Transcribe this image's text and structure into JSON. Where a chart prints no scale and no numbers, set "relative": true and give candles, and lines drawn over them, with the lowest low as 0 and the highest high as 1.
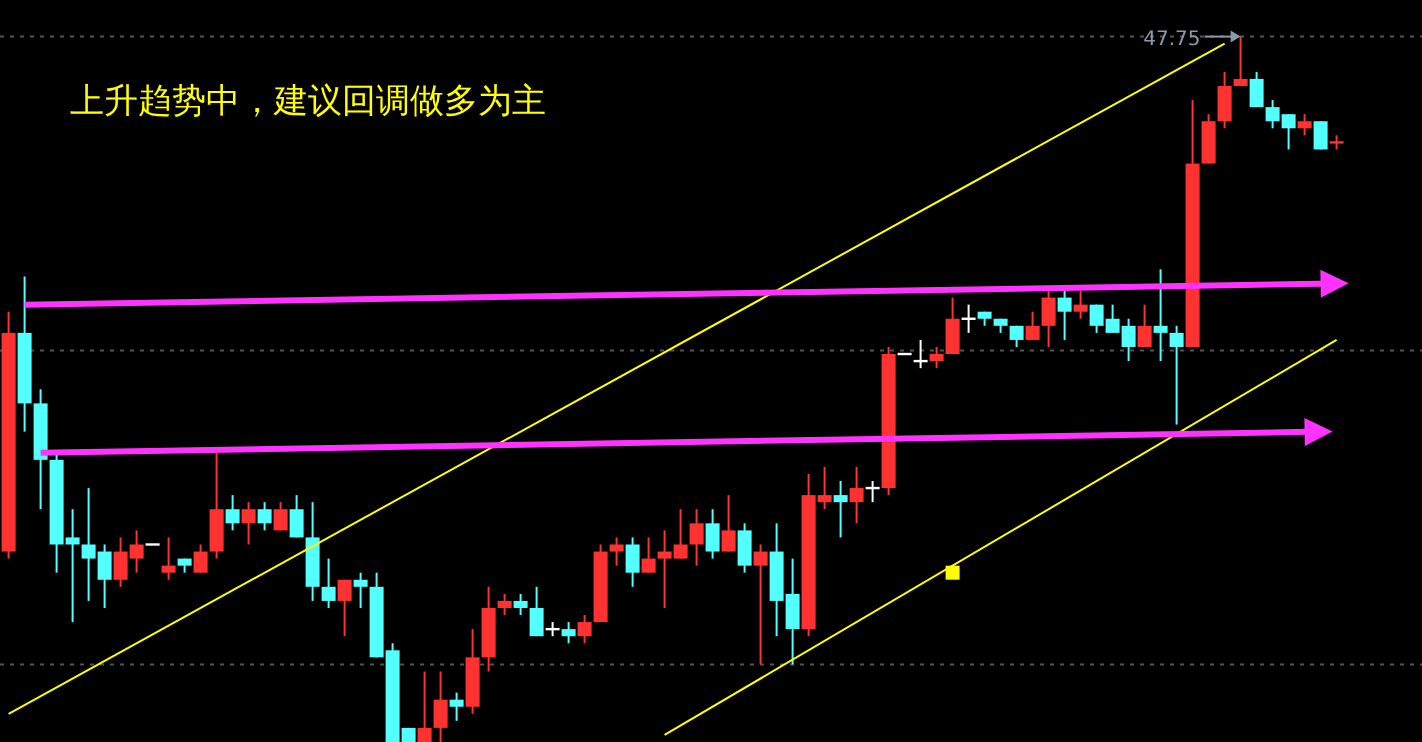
{
  "chart_data": {
    "type": "candlestick",
    "relative": true,
    "categories": [
      null,
      null,
      null,
      null,
      null,
      null,
      null,
      null,
      null,
      null,
      null,
      null,
      null,
      null,
      null,
      null,
      null,
      null,
      null,
      null,
      null,
      null,
      null,
      null,
      null,
      null,
      null,
      null,
      null,
      null,
      null,
      null,
      null,
      null,
      null,
      null,
      null,
      null,
      null,
      null,
      null,
      null,
      null,
      null,
      null,
      null,
      null,
      null,
      null,
      null,
      null,
      null,
      null,
      null,
      null,
      null,
      null,
      null,
      null,
      null,
      null,
      null,
      null,
      null,
      null,
      null,
      null,
      null,
      null,
      null,
      null,
      null,
      null,
      null,
      null,
      null,
      null,
      null,
      null,
      null,
      null,
      null,
      null,
      null
    ],
    "ohlc": [
      [
        0.27,
        0.61,
        0.26,
        0.58
      ],
      [
        0.58,
        0.66,
        0.44,
        0.48
      ],
      [
        0.48,
        0.5,
        0.33,
        0.4
      ],
      [
        0.4,
        0.41,
        0.24,
        0.28
      ],
      [
        0.29,
        0.33,
        0.17,
        0.28
      ],
      [
        0.28,
        0.36,
        0.2,
        0.26
      ],
      [
        0.27,
        0.28,
        0.19,
        0.23
      ],
      [
        0.23,
        0.29,
        0.22,
        0.27
      ],
      [
        0.26,
        0.3,
        0.24,
        0.28
      ],
      [
        0.28,
        0.28,
        0.28,
        0.28
      ],
      [
        0.24,
        0.29,
        0.23,
        0.25
      ],
      [
        0.26,
        0.26,
        0.24,
        0.25
      ],
      [
        0.24,
        0.28,
        0.24,
        0.27
      ],
      [
        0.27,
        0.41,
        0.26,
        0.33
      ],
      [
        0.33,
        0.35,
        0.3,
        0.31
      ],
      [
        0.31,
        0.34,
        0.28,
        0.33
      ],
      [
        0.33,
        0.34,
        0.3,
        0.31
      ],
      [
        0.3,
        0.34,
        0.3,
        0.33
      ],
      [
        0.33,
        0.35,
        0.29,
        0.29
      ],
      [
        0.29,
        0.34,
        0.2,
        0.22
      ],
      [
        0.22,
        0.26,
        0.19,
        0.2
      ],
      [
        0.2,
        0.23,
        0.15,
        0.23
      ],
      [
        0.23,
        0.24,
        0.19,
        0.22
      ],
      [
        0.22,
        0.24,
        0.12,
        0.12
      ],
      [
        0.13,
        0.14,
        0,
        0
      ],
      [
        0.02,
        0.02,
        0,
        0
      ],
      [
        0,
        0.1,
        0,
        0.02
      ],
      [
        0.02,
        0.1,
        0,
        0.06
      ],
      [
        0.06,
        0.07,
        0.03,
        0.05
      ],
      [
        0.05,
        0.16,
        0.04,
        0.12
      ],
      [
        0.12,
        0.22,
        0.1,
        0.19
      ],
      [
        0.19,
        0.21,
        0.18,
        0.2
      ],
      [
        0.2,
        0.21,
        0.18,
        0.19
      ],
      [
        0.19,
        0.22,
        0.15,
        0.15
      ],
      [
        0.16,
        0.17,
        0.15,
        0.16
      ],
      [
        0.16,
        0.17,
        0.14,
        0.15
      ],
      [
        0.15,
        0.18,
        0.14,
        0.17
      ],
      [
        0.17,
        0.28,
        0.17,
        0.27
      ],
      [
        0.27,
        0.29,
        0.25,
        0.28
      ],
      [
        0.28,
        0.29,
        0.22,
        0.24
      ],
      [
        0.24,
        0.29,
        0.24,
        0.26
      ],
      [
        0.26,
        0.3,
        0.19,
        0.27
      ],
      [
        0.26,
        0.33,
        0.26,
        0.28
      ],
      [
        0.28,
        0.33,
        0.25,
        0.31
      ],
      [
        0.31,
        0.33,
        0.26,
        0.27
      ],
      [
        0.27,
        0.35,
        0.27,
        0.3
      ],
      [
        0.3,
        0.31,
        0.24,
        0.25
      ],
      [
        0.25,
        0.28,
        0.11,
        0.27
      ],
      [
        0.27,
        0.31,
        0.15,
        0.2
      ],
      [
        0.21,
        0.26,
        0.11,
        0.16
      ],
      [
        0.16,
        0.38,
        0.15,
        0.35
      ],
      [
        0.34,
        0.39,
        0.33,
        0.35
      ],
      [
        0.35,
        0.37,
        0.29,
        0.34
      ],
      [
        0.34,
        0.39,
        0.31,
        0.36
      ],
      [
        0.36,
        0.37,
        0.34,
        0.36
      ],
      [
        0.36,
        0.56,
        0.35,
        0.55
      ],
      [
        0.55,
        0.55,
        0.55,
        0.55
      ],
      [
        0.54,
        0.57,
        0.53,
        0.54
      ],
      [
        0.54,
        0.56,
        0.53,
        0.55
      ],
      [
        0.55,
        0.63,
        0.55,
        0.6
      ],
      [
        0.6,
        0.62,
        0.58,
        0.6
      ],
      [
        0.61,
        0.61,
        0.59,
        0.6
      ],
      [
        0.6,
        0.6,
        0.58,
        0.59
      ],
      [
        0.59,
        0.59,
        0.56,
        0.57
      ],
      [
        0.57,
        0.61,
        0.57,
        0.59
      ],
      [
        0.59,
        0.64,
        0.56,
        0.63
      ],
      [
        0.63,
        0.64,
        0.57,
        0.61
      ],
      [
        0.61,
        0.64,
        0.6,
        0.62
      ],
      [
        0.62,
        0.62,
        0.58,
        0.59
      ],
      [
        0.6,
        0.62,
        0.58,
        0.58
      ],
      [
        0.59,
        0.6,
        0.54,
        0.56
      ],
      [
        0.56,
        0.62,
        0.56,
        0.59
      ],
      [
        0.59,
        0.67,
        0.54,
        0.58
      ],
      [
        0.58,
        0.59,
        0.45,
        0.56
      ],
      [
        0.56,
        0.91,
        0.56,
        0.82
      ],
      [
        0.82,
        0.89,
        0.82,
        0.88
      ],
      [
        0.88,
        0.95,
        0.87,
        0.93
      ],
      [
        0.93,
        1,
        0.93,
        0.94
      ],
      [
        0.94,
        0.95,
        0.9,
        0.9
      ],
      [
        0.9,
        0.91,
        0.87,
        0.88
      ],
      [
        0.89,
        0.89,
        0.84,
        0.87
      ],
      [
        0.87,
        0.89,
        0.86,
        0.88
      ],
      [
        0.88,
        0.88,
        0.84,
        0.84
      ],
      [
        0.85,
        0.86,
        0.84,
        0.85
      ]
    ],
    "colors": [
      "#ff3232",
      "#54ffff",
      "#54ffff",
      "#54ffff",
      "#54ffff",
      "#54ffff",
      "#54ffff",
      "#ff3232",
      "#ff3232",
      "#ffffff",
      "#ff3232",
      "#54ffff",
      "#ff3232",
      "#ff3232",
      "#54ffff",
      "#ff3232",
      "#54ffff",
      "#ff3232",
      "#54ffff",
      "#54ffff",
      "#54ffff",
      "#ff3232",
      "#54ffff",
      "#54ffff",
      "#54ffff",
      "#54ffff",
      "#ff3232",
      "#ff3232",
      "#54ffff",
      "#ff3232",
      "#ff3232",
      "#ff3232",
      "#54ffff",
      "#54ffff",
      "#ffffff",
      "#54ffff",
      "#ff3232",
      "#ff3232",
      "#ff3232",
      "#54ffff",
      "#ff3232",
      "#ff3232",
      "#ff3232",
      "#ff3232",
      "#54ffff",
      "#ff3232",
      "#54ffff",
      "#ff3232",
      "#54ffff",
      "#54ffff",
      "#ff3232",
      "#ff3232",
      "#54ffff",
      "#ff3232",
      "#ffffff",
      "#ff3232",
      "#ffffff",
      "#ffffff",
      "#ff3232",
      "#ff3232",
      "#ffffff",
      "#54ffff",
      "#54ffff",
      "#54ffff",
      "#ff3232",
      "#ff3232",
      "#54ffff",
      "#ff3232",
      "#54ffff",
      "#54ffff",
      "#54ffff",
      "#ff3232",
      "#54ffff",
      "#54ffff",
      "#ff3232",
      "#ff3232",
      "#ff3232",
      "#ff3232",
      "#54ffff",
      "#54ffff",
      "#54ffff",
      "#ff3232",
      "#54ffff",
      "#ff3232"
    ],
    "series": [
      {
        "type": "line",
        "color": "#ffff00",
        "values": [
          0.04,
          null,
          null,
          null,
          null,
          null,
          null,
          null,
          null,
          null,
          null,
          null,
          null,
          null,
          null,
          null,
          null,
          null,
          null,
          null,
          null,
          null,
          null,
          null,
          null,
          null,
          null,
          null,
          null,
          null,
          null,
          null,
          null,
          null,
          null,
          null,
          null,
          null,
          null,
          null,
          null,
          null,
          null,
          null,
          null,
          null,
          null,
          null,
          null,
          null,
          null,
          null,
          null,
          null,
          null,
          null,
          null,
          null,
          null,
          null,
          null,
          null,
          null,
          null,
          null,
          null,
          null,
          null,
          null,
          null,
          null,
          null,
          null,
          null,
          null,
          null,
          0.99,
          null,
          null,
          null,
          null,
          null,
          null,
          null
        ]
      },
      {
        "type": "line",
        "color": "#ffff00",
        "values": [
          null,
          null,
          null,
          null,
          null,
          null,
          null,
          null,
          null,
          null,
          null,
          null,
          null,
          null,
          null,
          null,
          null,
          null,
          null,
          null,
          null,
          null,
          null,
          null,
          null,
          null,
          null,
          null,
          null,
          null,
          null,
          null,
          null,
          null,
          null,
          null,
          null,
          null,
          null,
          null,
          null,
          0.01,
          null,
          null,
          null,
          null,
          null,
          null,
          null,
          null,
          null,
          null,
          null,
          null,
          null,
          null,
          null,
          null,
          null,
          null,
          null,
          null,
          null,
          null,
          null,
          null,
          null,
          null,
          null,
          null,
          null,
          null,
          null,
          null,
          null,
          null,
          null,
          null,
          null,
          null,
          null,
          null,
          null,
          0.57
        ]
      },
      {
        "type": "line",
        "color": "#ff33ff",
        "marker": "triangle",
        "values": [
          null,
          0.62,
          null,
          null,
          null,
          null,
          null,
          null,
          null,
          null,
          null,
          null,
          null,
          null,
          null,
          null,
          null,
          null,
          null,
          null,
          null,
          null,
          null,
          null,
          null,
          null,
          null,
          null,
          null,
          null,
          null,
          null,
          null,
          null,
          null,
          null,
          null,
          null,
          null,
          null,
          null,
          null,
          null,
          null,
          null,
          null,
          null,
          null,
          null,
          null,
          null,
          null,
          null,
          null,
          null,
          null,
          null,
          null,
          null,
          null,
          null,
          null,
          null,
          null,
          null,
          null,
          null,
          null,
          null,
          null,
          null,
          null,
          null,
          null,
          null,
          null,
          null,
          null,
          null,
          null,
          null,
          null,
          null,
          0.65
        ]
      },
      {
        "type": "line",
        "color": "#ff33ff",
        "marker": "triangle",
        "values": [
          null,
          null,
          0.41,
          null,
          null,
          null,
          null,
          null,
          null,
          null,
          null,
          null,
          null,
          null,
          null,
          null,
          null,
          null,
          null,
          null,
          null,
          null,
          null,
          null,
          null,
          null,
          null,
          null,
          null,
          null,
          null,
          null,
          null,
          null,
          null,
          null,
          null,
          null,
          null,
          null,
          null,
          null,
          null,
          null,
          null,
          null,
          null,
          null,
          null,
          null,
          null,
          null,
          null,
          null,
          null,
          null,
          null,
          null,
          null,
          null,
          null,
          null,
          null,
          null,
          null,
          null,
          null,
          null,
          null,
          null,
          null,
          null,
          null,
          null,
          null,
          null,
          null,
          null,
          null,
          null,
          null,
          null,
          0.44,
          null
        ]
      },
      {
        "type": "scatter",
        "color": "#ffff00",
        "marker": "square",
        "values": [
          null,
          null,
          null,
          null,
          null,
          null,
          null,
          null,
          null,
          null,
          null,
          null,
          null,
          null,
          null,
          null,
          null,
          null,
          null,
          null,
          null,
          null,
          null,
          null,
          null,
          null,
          null,
          null,
          null,
          null,
          null,
          null,
          null,
          null,
          null,
          null,
          null,
          null,
          null,
          null,
          null,
          null,
          null,
          null,
          null,
          null,
          null,
          null,
          null,
          null,
          null,
          null,
          null,
          null,
          null,
          null,
          null,
          null,
          null,
          0.24,
          null,
          null,
          null,
          null,
          null,
          null,
          null,
          null,
          null,
          null,
          null,
          null,
          null,
          null,
          null,
          null,
          null,
          null,
          null,
          null,
          null,
          null,
          null,
          null
        ]
      }
    ],
    "ref_lines": [
      {
        "axis": "y",
        "value": 1,
        "color": "#555555",
        "line_style": "dotted"
      },
      {
        "axis": "y",
        "value": 0.555,
        "color": "#555555",
        "line_style": "dotted"
      },
      {
        "axis": "y",
        "value": 0.11,
        "color": "#555555",
        "line_style": "dotted"
      }
    ],
    "annotations": [
      "上升趋势中，建议回调做多为主",
      {
        "text": "47.75",
        "y": 1
      }
    ]
  }
}
